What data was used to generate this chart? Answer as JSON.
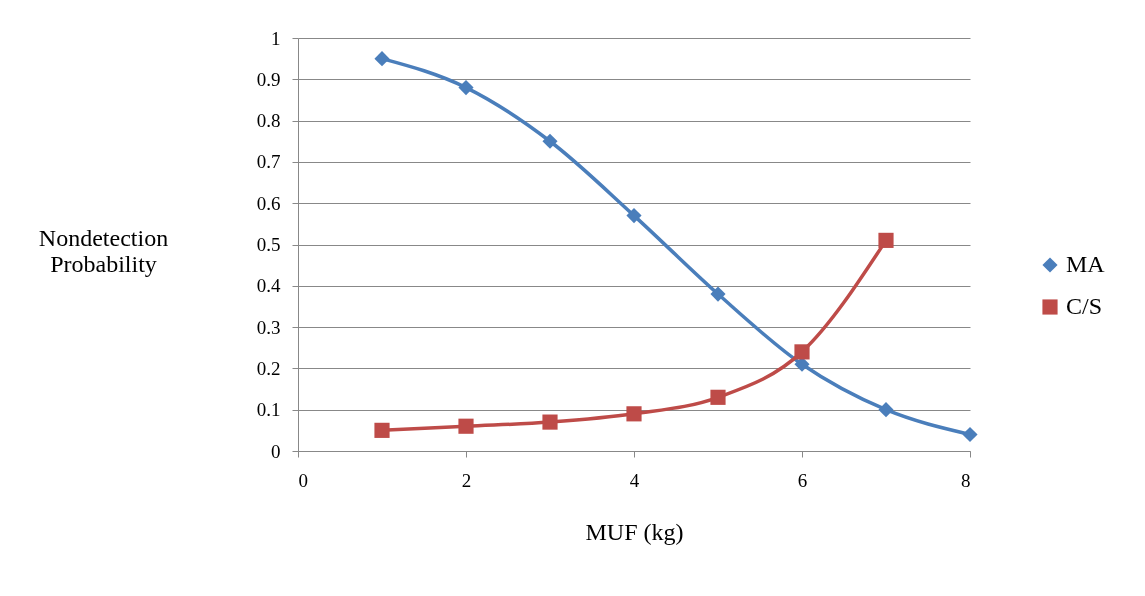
{
  "chart_data": {
    "type": "line",
    "xlabel": "MUF (kg)",
    "ylabel": "Nondetection Probability",
    "x": [
      1,
      2,
      3,
      4,
      5,
      6,
      7,
      8
    ],
    "series": [
      {
        "name": "MA",
        "color": "#4a7ebb",
        "marker": "diamond",
        "values": [
          0.95,
          0.88,
          0.75,
          0.57,
          0.38,
          0.21,
          0.1,
          0.04
        ]
      },
      {
        "name": "C/S",
        "color": "#be4b48",
        "marker": "square",
        "values": [
          0.05,
          0.06,
          0.07,
          0.09,
          0.13,
          0.24,
          0.51,
          null
        ]
      }
    ],
    "xlim": [
      0,
      8
    ],
    "xticks": [
      0,
      2,
      4,
      6,
      8
    ],
    "ylim": [
      0,
      1
    ],
    "yticks": [
      0,
      0.1,
      0.2,
      0.3,
      0.4,
      0.5,
      0.6,
      0.7,
      0.8,
      0.9,
      1
    ],
    "grid": "y",
    "legend": "right",
    "line_style": "solid"
  }
}
